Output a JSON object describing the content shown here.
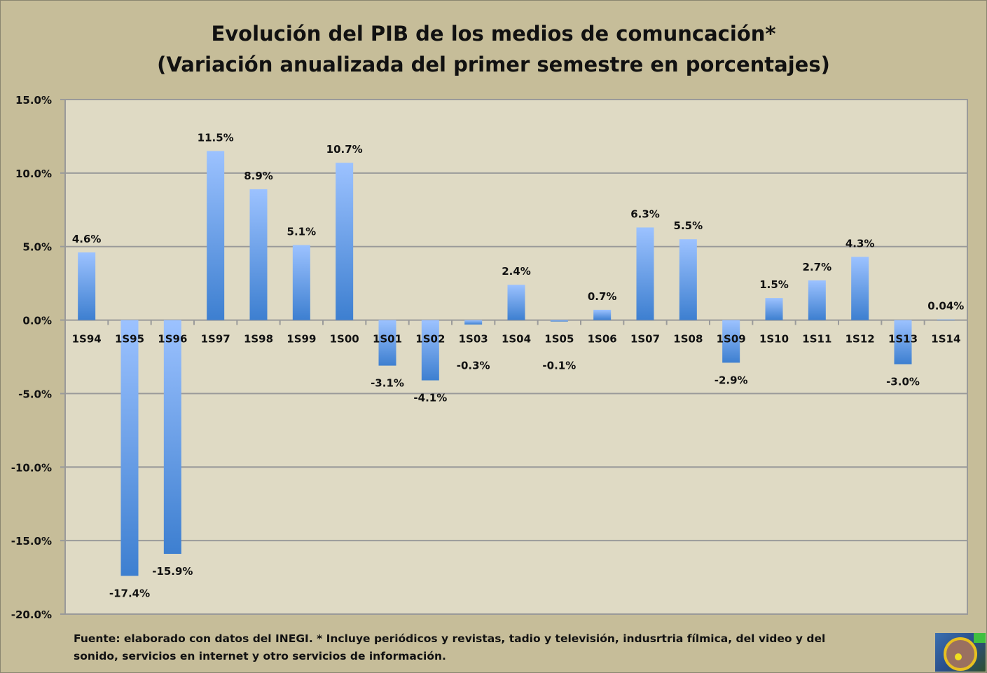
{
  "chart_data": {
    "type": "bar",
    "title": "Evolución del PIB de los medios de comuncación*",
    "subtitle": "(Variación anualizada del primer semestre en porcentajes)",
    "xlabel": "",
    "ylabel": "",
    "ylim": [
      -20,
      15
    ],
    "yticks": [
      "15.0%",
      "10.0%",
      "5.0%",
      "0.0%",
      "-5.0%",
      "-10.0%",
      "-15.0%",
      "-20.0%"
    ],
    "ytick_values": [
      15,
      10,
      5,
      0,
      -5,
      -10,
      -15,
      -20
    ],
    "grid": true,
    "categories": [
      "1S94",
      "1S95",
      "1S96",
      "1S97",
      "1S98",
      "1S99",
      "1S00",
      "1S01",
      "1S02",
      "1S03",
      "1S04",
      "1S05",
      "1S06",
      "1S07",
      "1S08",
      "1S09",
      "1S10",
      "1S11",
      "1S12",
      "1S13",
      "1S14"
    ],
    "values": [
      4.6,
      -17.4,
      -15.9,
      11.5,
      8.9,
      5.1,
      10.7,
      -3.1,
      -4.1,
      -0.3,
      2.4,
      -0.1,
      0.7,
      6.3,
      5.5,
      -2.9,
      1.5,
      2.7,
      4.3,
      -3.0,
      0.04
    ],
    "data_labels": [
      "4.6%",
      "-17.4%",
      "-15.9%",
      "11.5%",
      "8.9%",
      "5.1%",
      "10.7%",
      "-3.1%",
      "-4.1%",
      "-0.3%",
      "2.4%",
      "-0.1%",
      "0.7%",
      "6.3%",
      "5.5%",
      "-2.9%",
      "1.5%",
      "2.7%",
      "4.3%",
      "-3.0%",
      "0.04%"
    ],
    "bar_color_top": "#9cc2ff",
    "bar_color_bottom": "#3d7fd0"
  },
  "footnote": "Fuente: elaborado con datos del INEGI. * Incluye periódicos y revistas, tadio y televisión, indusrtria fílmica, del video y del sonido, servicios en internet y otro servicios de información."
}
